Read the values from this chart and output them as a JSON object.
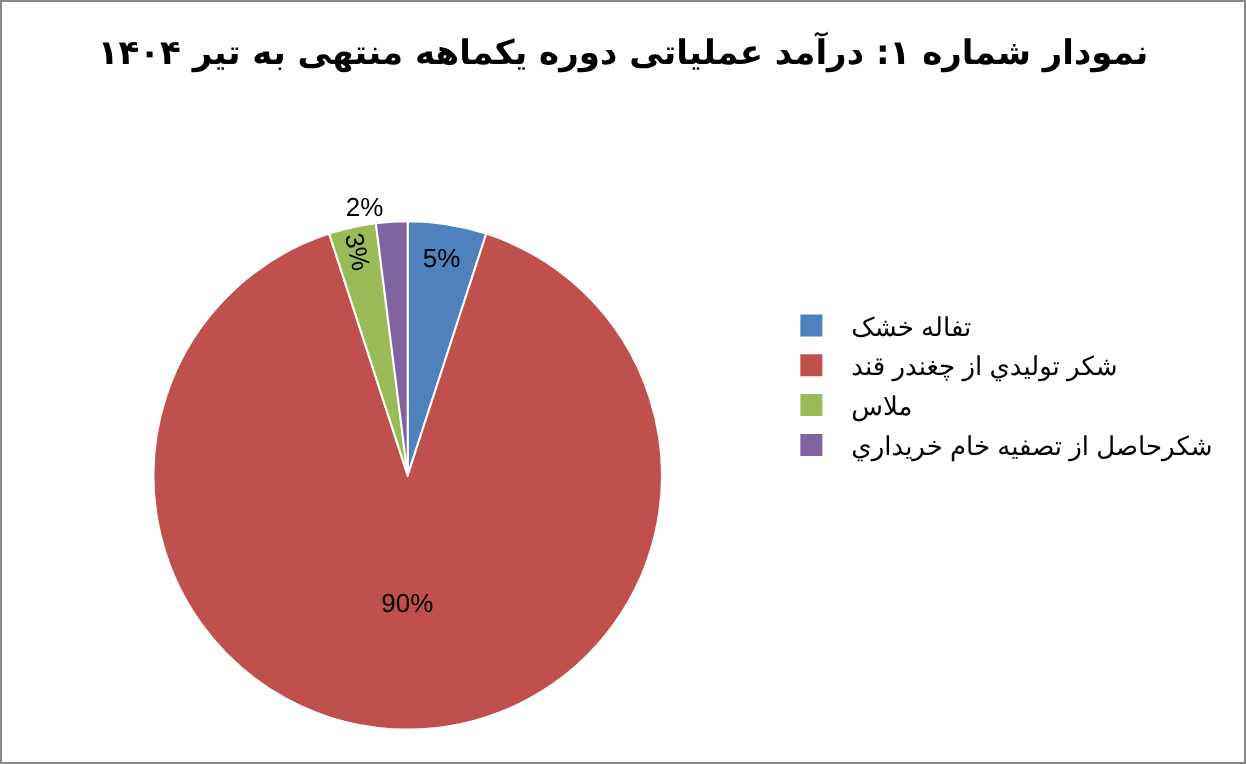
{
  "chart_data": {
    "type": "pie",
    "title": "نمودار شماره ۱: درآمد عملیاتی دوره یکماهه منتهی به تیر ۱۴۰۴",
    "categories": [
      "تفاله خشک",
      "شکر توليدي از چغندر قند",
      "ملاس",
      "شکرحاصل از تصفيه خام خريداري"
    ],
    "values": [
      5,
      90,
      3,
      2
    ],
    "colors": [
      "#4f81bd",
      "#c0504d",
      "#9bbb59",
      "#8064a2"
    ],
    "value_labels": [
      "5%",
      "90%",
      "3%",
      "2%"
    ],
    "legend": "right"
  }
}
